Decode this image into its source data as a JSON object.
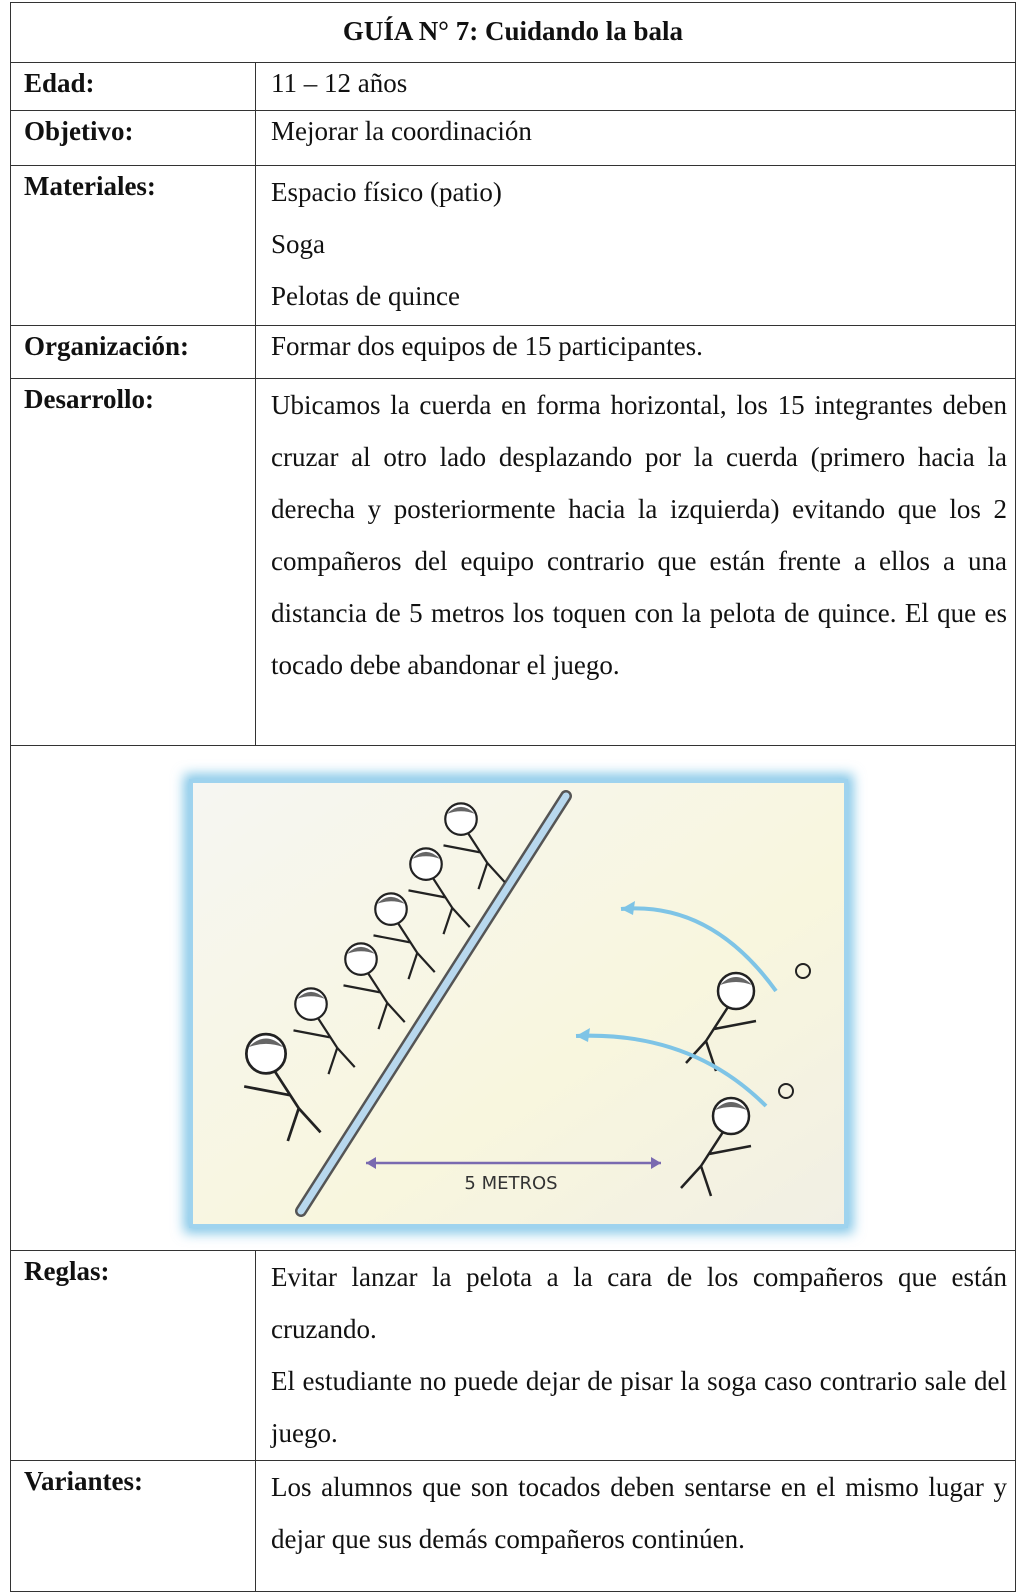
{
  "title": "GUÍA N° 7: Cuidando la bala",
  "rows": [
    {
      "label": "Edad:",
      "lines": [
        "11 – 12 años"
      ]
    },
    {
      "label": "Objetivo:",
      "lines": [
        "Mejorar la coordinación"
      ]
    },
    {
      "label": "Materiales:",
      "lines": [
        "Espacio físico (patio)",
        "Soga",
        "Pelotas de quince"
      ]
    },
    {
      "label": "Organización:",
      "lines": [
        "Formar dos equipos de 15 participantes."
      ]
    },
    {
      "label": "Desarrollo:",
      "lines": [
        "Ubicamos la cuerda en forma horizontal, los 15 integrantes deben cruzar al otro lado desplazando por la cuerda (primero hacia la derecha y posteriormente hacia la izquierda) evitando que los 2 compañeros del equipo contrario que están frente a ellos a una distancia de 5 metros los toquen con la pelota de quince. El que es tocado debe abandonar el juego."
      ]
    },
    {
      "label": "Reglas:",
      "lines": [
        "Evitar lanzar la pelota a la cara de los compañeros que están cruzando.",
        "El estudiante no puede dejar de pisar la soga caso contrario sale del juego."
      ]
    },
    {
      "label": "Variantes:",
      "lines": [
        "Los alumnos que son tocados deben sentarse en el mismo lugar y dejar que sus demás compañeros continúen."
      ]
    }
  ],
  "illustration": {
    "label": "5 METROS"
  }
}
